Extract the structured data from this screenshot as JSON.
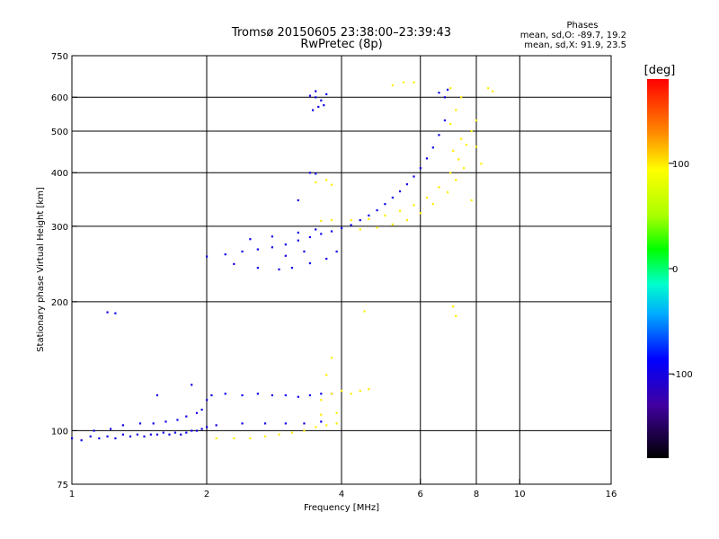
{
  "chart_data": {
    "type": "scatter",
    "title": "Tromsø 20150605 23:38:00–23:39:43",
    "subtitle": "RwPretec (8p)",
    "xlabel": "Frequency [MHz]",
    "ylabel": "Stationary phase Virtual Height [km]",
    "x_scale": "log",
    "y_scale": "log",
    "xlim": [
      1,
      16
    ],
    "ylim": [
      75,
      750
    ],
    "x_ticks": [
      1,
      2,
      4,
      6,
      8,
      10,
      16
    ],
    "x_tick_labels": [
      "1",
      "2",
      "4",
      "6",
      "8",
      "10",
      "16"
    ],
    "x_gridlines": [
      2,
      4,
      6,
      8,
      10
    ],
    "y_ticks": [
      75,
      100,
      200,
      300,
      400,
      500,
      600,
      750
    ],
    "y_tick_labels": [
      "75",
      "100",
      "200",
      "300",
      "400",
      "500",
      "600",
      "750"
    ],
    "y_gridlines": [
      100,
      200,
      300,
      400,
      500,
      600
    ],
    "grid": true,
    "legend": {
      "heading": "Phases",
      "lines": [
        "mean, sd,O: -89.7, 19.2",
        "mean, sd,X: 91.9, 23.5"
      ],
      "placement": "top-right"
    },
    "colorbar": {
      "label": "[deg]",
      "range": [
        -180,
        180
      ],
      "ticks": [
        100,
        0,
        -100
      ],
      "tick_labels": [
        "100",
        "0",
        "-100"
      ],
      "placement": "right"
    },
    "series": [
      {
        "name": "O-mode",
        "phase_deg": -100,
        "points": [
          [
            1.0,
            96
          ],
          [
            1.05,
            95
          ],
          [
            1.1,
            97
          ],
          [
            1.15,
            96
          ],
          [
            1.2,
            97
          ],
          [
            1.25,
            96
          ],
          [
            1.3,
            98
          ],
          [
            1.35,
            97
          ],
          [
            1.4,
            98
          ],
          [
            1.45,
            97
          ],
          [
            1.5,
            98
          ],
          [
            1.55,
            98
          ],
          [
            1.6,
            99
          ],
          [
            1.65,
            98
          ],
          [
            1.7,
            99
          ],
          [
            1.75,
            98
          ],
          [
            1.8,
            99
          ],
          [
            1.85,
            100
          ],
          [
            1.9,
            100
          ],
          [
            1.95,
            101
          ],
          [
            2.0,
            102
          ],
          [
            1.12,
            100
          ],
          [
            1.22,
            101
          ],
          [
            1.3,
            103
          ],
          [
            1.42,
            104
          ],
          [
            1.52,
            104
          ],
          [
            1.62,
            105
          ],
          [
            1.72,
            106
          ],
          [
            1.8,
            108
          ],
          [
            1.9,
            110
          ],
          [
            1.95,
            112
          ],
          [
            2.0,
            118
          ],
          [
            2.05,
            121
          ],
          [
            2.2,
            122
          ],
          [
            2.4,
            121
          ],
          [
            2.6,
            122
          ],
          [
            2.8,
            121
          ],
          [
            3.0,
            121
          ],
          [
            3.2,
            120
          ],
          [
            3.4,
            121
          ],
          [
            3.6,
            122
          ],
          [
            3.8,
            122
          ],
          [
            2.1,
            103
          ],
          [
            2.4,
            104
          ],
          [
            2.7,
            104
          ],
          [
            3.0,
            104
          ],
          [
            3.3,
            104
          ],
          [
            3.6,
            105
          ],
          [
            1.55,
            121
          ],
          [
            1.85,
            128
          ],
          [
            1.2,
            189
          ],
          [
            1.25,
            188
          ],
          [
            2.0,
            255
          ],
          [
            2.2,
            258
          ],
          [
            2.4,
            262
          ],
          [
            2.6,
            265
          ],
          [
            2.8,
            268
          ],
          [
            3.0,
            272
          ],
          [
            3.2,
            278
          ],
          [
            3.4,
            283
          ],
          [
            3.6,
            288
          ],
          [
            3.8,
            292
          ],
          [
            4.0,
            297
          ],
          [
            4.2,
            302
          ],
          [
            4.4,
            310
          ],
          [
            4.6,
            318
          ],
          [
            4.8,
            327
          ],
          [
            5.0,
            338
          ],
          [
            5.2,
            350
          ],
          [
            5.4,
            362
          ],
          [
            5.6,
            376
          ],
          [
            5.8,
            392
          ],
          [
            6.0,
            410
          ],
          [
            6.2,
            432
          ],
          [
            6.4,
            458
          ],
          [
            6.6,
            490
          ],
          [
            6.8,
            530
          ],
          [
            2.3,
            245
          ],
          [
            2.6,
            240
          ],
          [
            2.9,
            238
          ],
          [
            3.1,
            240
          ],
          [
            3.4,
            246
          ],
          [
            3.7,
            252
          ],
          [
            3.9,
            262
          ],
          [
            2.5,
            280
          ],
          [
            2.8,
            284
          ],
          [
            3.2,
            290
          ],
          [
            3.5,
            295
          ],
          [
            3.3,
            262
          ],
          [
            3.0,
            256
          ],
          [
            3.4,
            605
          ],
          [
            3.5,
            600
          ],
          [
            3.6,
            590
          ],
          [
            3.55,
            570
          ],
          [
            3.45,
            560
          ],
          [
            3.65,
            575
          ],
          [
            3.5,
            620
          ],
          [
            3.7,
            610
          ],
          [
            3.2,
            345
          ],
          [
            3.4,
            400
          ],
          [
            3.5,
            398
          ],
          [
            6.8,
            600
          ],
          [
            6.6,
            615
          ],
          [
            6.9,
            625
          ]
        ]
      },
      {
        "name": "X-mode",
        "phase_deg": 100,
        "points": [
          [
            2.1,
            96
          ],
          [
            2.3,
            96
          ],
          [
            2.5,
            96
          ],
          [
            2.7,
            97
          ],
          [
            2.9,
            98
          ],
          [
            3.1,
            99
          ],
          [
            3.3,
            100
          ],
          [
            3.5,
            102
          ],
          [
            3.7,
            103
          ],
          [
            3.9,
            104
          ],
          [
            3.6,
            118
          ],
          [
            3.8,
            122
          ],
          [
            4.0,
            124
          ],
          [
            4.2,
            122
          ],
          [
            4.4,
            124
          ],
          [
            4.6,
            125
          ],
          [
            3.7,
            135
          ],
          [
            3.8,
            148
          ],
          [
            3.6,
            109
          ],
          [
            3.9,
            110
          ],
          [
            3.6,
            309
          ],
          [
            3.8,
            310
          ],
          [
            4.2,
            310
          ],
          [
            4.6,
            312
          ],
          [
            5.0,
            318
          ],
          [
            5.4,
            326
          ],
          [
            5.8,
            336
          ],
          [
            6.2,
            350
          ],
          [
            6.6,
            370
          ],
          [
            7.0,
            400
          ],
          [
            7.3,
            430
          ],
          [
            7.6,
            465
          ],
          [
            7.8,
            500
          ],
          [
            8.0,
            530
          ],
          [
            4.4,
            295
          ],
          [
            4.8,
            298
          ],
          [
            5.2,
            303
          ],
          [
            5.6,
            310
          ],
          [
            6.0,
            322
          ],
          [
            6.4,
            338
          ],
          [
            6.9,
            360
          ],
          [
            7.2,
            385
          ],
          [
            7.5,
            410
          ],
          [
            7.1,
            450
          ],
          [
            7.4,
            480
          ],
          [
            7.0,
            520
          ],
          [
            7.2,
            560
          ],
          [
            7.4,
            600
          ],
          [
            7.0,
            630
          ],
          [
            8.5,
            630
          ],
          [
            8.7,
            620
          ],
          [
            7.8,
            345
          ],
          [
            8.2,
            420
          ],
          [
            8.0,
            460
          ],
          [
            7.1,
            195
          ],
          [
            7.2,
            185
          ],
          [
            4.5,
            190
          ],
          [
            5.5,
            650
          ],
          [
            5.8,
            650
          ],
          [
            5.2,
            640
          ],
          [
            3.7,
            385
          ],
          [
            3.8,
            375
          ],
          [
            3.5,
            380
          ]
        ]
      }
    ]
  }
}
